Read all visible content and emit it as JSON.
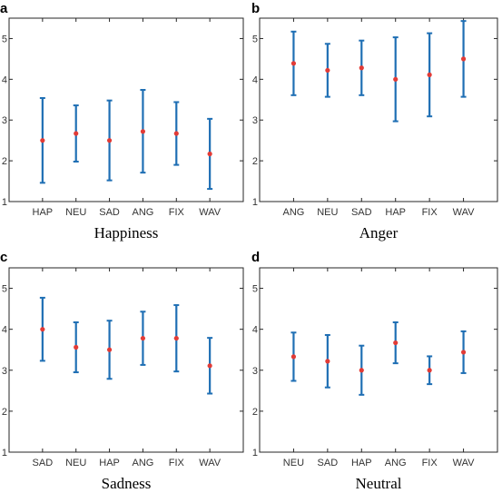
{
  "colors": {
    "errorbar": "#1f6fb4",
    "point": "#e23b36",
    "axis": "#262626"
  },
  "chart_data": [
    {
      "type": "scatter",
      "panel_label": "a",
      "title": "Happiness",
      "categories": [
        "HAP",
        "NEU",
        "SAD",
        "ANG",
        "FIX",
        "WAV"
      ],
      "means": [
        2.5,
        2.67,
        2.5,
        2.72,
        2.67,
        2.17
      ],
      "lower": [
        1.46,
        1.98,
        1.52,
        1.71,
        1.9,
        1.31
      ],
      "upper": [
        3.54,
        3.36,
        3.48,
        3.74,
        3.44,
        3.03
      ],
      "ylim": [
        1,
        5.5
      ],
      "yticks": [
        "1",
        "2",
        "3",
        "4",
        "5"
      ],
      "grid": false
    },
    {
      "type": "scatter",
      "panel_label": "b",
      "title": "Anger",
      "categories": [
        "ANG",
        "NEU",
        "SAD",
        "HAP",
        "FIX",
        "WAV"
      ],
      "means": [
        4.39,
        4.22,
        4.28,
        4.0,
        4.11,
        4.5
      ],
      "lower": [
        3.61,
        3.57,
        3.61,
        2.97,
        3.09,
        3.57
      ],
      "upper": [
        5.17,
        4.87,
        4.95,
        5.03,
        5.13,
        5.43
      ],
      "ylim": [
        1,
        5.5
      ],
      "yticks": [
        "1",
        "2",
        "3",
        "4",
        "5"
      ],
      "grid": false
    },
    {
      "type": "scatter",
      "panel_label": "c",
      "title": "Sadness",
      "categories": [
        "SAD",
        "NEU",
        "HAP",
        "ANG",
        "FIX",
        "WAV"
      ],
      "means": [
        4.0,
        3.56,
        3.5,
        3.78,
        3.78,
        3.11
      ],
      "lower": [
        3.23,
        2.95,
        2.79,
        3.13,
        2.97,
        2.43
      ],
      "upper": [
        4.77,
        4.17,
        4.21,
        4.43,
        4.59,
        3.79
      ],
      "ylim": [
        1,
        5.5
      ],
      "yticks": [
        "1",
        "2",
        "3",
        "4",
        "5"
      ],
      "grid": false
    },
    {
      "type": "scatter",
      "panel_label": "d",
      "title": "Neutral",
      "categories": [
        "NEU",
        "SAD",
        "HAP",
        "ANG",
        "FIX",
        "WAV"
      ],
      "means": [
        3.33,
        3.22,
        3.0,
        3.67,
        3.0,
        3.44
      ],
      "lower": [
        2.74,
        2.58,
        2.4,
        3.17,
        2.66,
        2.93
      ],
      "upper": [
        3.92,
        3.86,
        3.6,
        4.17,
        3.34,
        3.95
      ],
      "ylim": [
        1,
        5.5
      ],
      "yticks": [
        "1",
        "2",
        "3",
        "4",
        "5"
      ],
      "grid": false
    }
  ]
}
